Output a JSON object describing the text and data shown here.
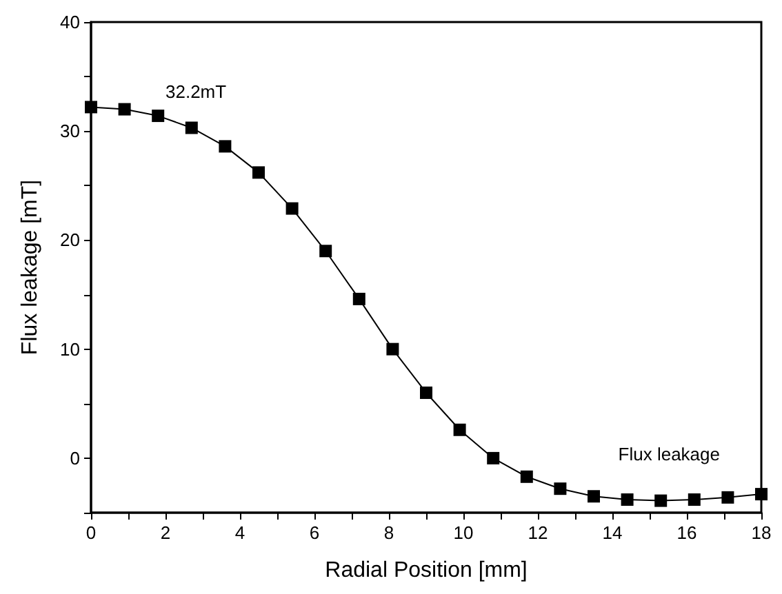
{
  "chart_data": {
    "type": "line",
    "xlabel": "Radial Position [mm]",
    "ylabel": "Flux leakage [mT]",
    "x": [
      0,
      0.9,
      1.8,
      2.7,
      3.6,
      4.5,
      5.4,
      6.3,
      7.2,
      8.1,
      9,
      9.9,
      10.8,
      11.7,
      12.6,
      13.5,
      14.4,
      15.3,
      16.2,
      17.1,
      18
    ],
    "series": [
      {
        "name": "Flux leakage",
        "color": "#000000",
        "values": [
          32.2,
          32.0,
          31.4,
          30.3,
          28.6,
          26.2,
          22.9,
          19.0,
          14.6,
          10.0,
          6.0,
          2.6,
          0.0,
          -1.7,
          -2.8,
          -3.5,
          -3.8,
          -3.9,
          -3.8,
          -3.6,
          -3.3
        ]
      }
    ],
    "xlim": [
      0,
      18
    ],
    "xticks": [
      0,
      {
        "value": 1,
        "label": null
      },
      2,
      {
        "value": 3,
        "label": null
      },
      4,
      {
        "value": 5,
        "label": null
      },
      6,
      {
        "value": 7,
        "label": null
      },
      8,
      {
        "value": 9,
        "label": null
      },
      10,
      {
        "value": 11,
        "label": null
      },
      12,
      {
        "value": 13,
        "label": null
      },
      14,
      {
        "value": 15,
        "label": null
      },
      16,
      {
        "value": 17,
        "label": null
      },
      18
    ],
    "ylim": [
      -5,
      40
    ],
    "yticks": [
      {
        "value": -5,
        "label": null
      },
      0,
      {
        "value": 5,
        "label": null
      },
      10,
      {
        "value": 15,
        "label": null
      },
      20,
      {
        "value": 25,
        "label": null
      },
      30,
      {
        "value": 35,
        "label": null
      },
      40
    ],
    "annotations": [
      "32.2mT"
    ],
    "legend": "bottom right",
    "marker": "square",
    "line_style": "solid",
    "grid": false
  }
}
